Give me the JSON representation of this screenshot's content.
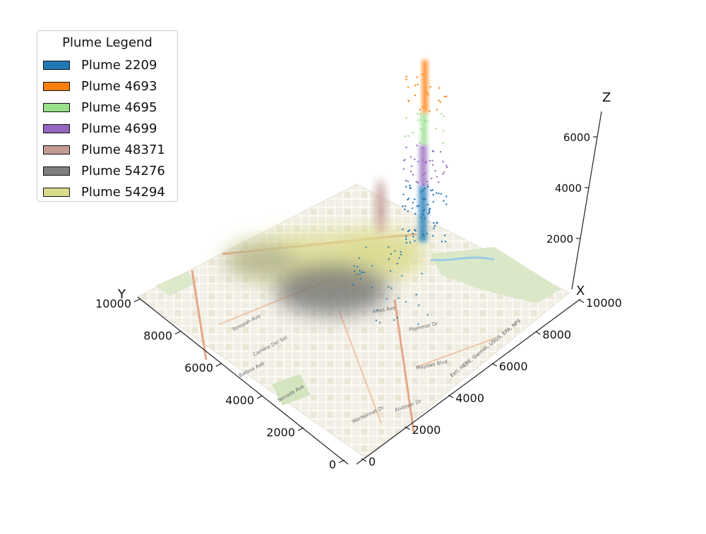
{
  "chart_data": {
    "type": "3d-scatter-over-map",
    "legend": {
      "title": "Plume Legend",
      "placement": "top-left",
      "entries": [
        {
          "name": "Plume 2209",
          "color": "#1f77b4"
        },
        {
          "name": "Plume 4693",
          "color": "#ff7f0e"
        },
        {
          "name": "Plume 4695",
          "color": "#98df8a"
        },
        {
          "name": "Plume 4699",
          "color": "#9467bd"
        },
        {
          "name": "Plume 48371",
          "color": "#c49c94"
        },
        {
          "name": "Plume 54276",
          "color": "#7f7f7f"
        },
        {
          "name": "Plume 54294",
          "color": "#dbdb8d"
        }
      ]
    },
    "axes": {
      "x": {
        "label": "X",
        "range": [
          0,
          10000
        ],
        "ticks": [
          "0",
          "2000",
          "4000",
          "6000",
          "8000",
          "10000"
        ]
      },
      "y": {
        "label": "Y",
        "range": [
          0,
          10000
        ],
        "ticks": [
          "0",
          "2000",
          "4000",
          "6000",
          "8000",
          "10000"
        ]
      },
      "z": {
        "label": "Z",
        "range": [
          0,
          7000
        ],
        "ticks": [
          "2000",
          "4000",
          "6000"
        ]
      }
    },
    "series": [
      {
        "name": "Plume 2209",
        "x": 9000,
        "y": 9300,
        "z_range": [
          200,
          3700
        ]
      },
      {
        "name": "Plume 4693",
        "x": 9000,
        "y": 9300,
        "z_range": [
          5400,
          7000
        ]
      },
      {
        "name": "Plume 4695",
        "x": 9000,
        "y": 9300,
        "z_range": [
          4700,
          5400
        ]
      },
      {
        "name": "Plume 4699",
        "x": 9000,
        "y": 9300,
        "z_range": [
          3700,
          4700
        ]
      },
      {
        "name": "Plume 48371",
        "x": 4700,
        "y": 9900,
        "z_range": [
          0,
          1600
        ]
      },
      {
        "name": "Plume 54276",
        "x": 4900,
        "y": 7400,
        "z_range": [
          0,
          300
        ]
      },
      {
        "name": "Plume 54294",
        "x": 6400,
        "y": 8700,
        "z_range": [
          0,
          300
        ]
      }
    ],
    "map_labels": [
      "Plummer Dr",
      "Maydan Blvd",
      "Andover Dr",
      "Aries Ave",
      "Warbonnet Dr",
      "Nevada Ave",
      "Camino Del Sol",
      "Tonopah Ave",
      "Balboa Ave"
    ],
    "attribution": "Esri, HERE, Garmin, USGS, EPA, NPS"
  }
}
